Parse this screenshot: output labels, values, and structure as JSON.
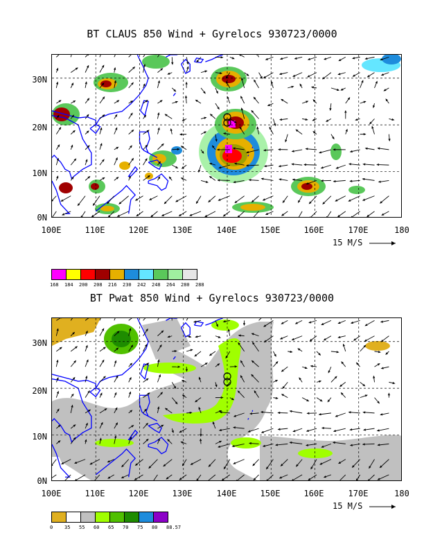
{
  "panel1": {
    "title": "BT CLAUS 850 Wind + Gyrelocs 930723/0000",
    "y_labels": [
      "30N",
      "20N",
      "10N",
      "0N"
    ],
    "x_labels": [
      "100E",
      "110E",
      "120E",
      "130E",
      "140E",
      "150E",
      "160E",
      "170E",
      "180"
    ],
    "ref_vector": "15 M/S",
    "colorbar": {
      "colors": [
        "#ff00ff",
        "#ffff00",
        "#ff0000",
        "#a00000",
        "#e6b000",
        "#1e8cdc",
        "#64e6ff",
        "#5ac85a",
        "#a0f0a0",
        "#e6e6e6"
      ],
      "labels": [
        "168",
        "184",
        "200",
        "208",
        "216",
        "230",
        "242",
        "248",
        "264",
        "280",
        "288"
      ]
    }
  },
  "panel2": {
    "title": "BT Pwat 850 Wind + Gyrelocs 930723/0000",
    "y_labels": [
      "30N",
      "20N",
      "10N",
      "0N"
    ],
    "x_labels": [
      "100E",
      "110E",
      "120E",
      "130E",
      "140E",
      "150E",
      "160E",
      "170E",
      "180"
    ],
    "ref_vector": "15 M/S",
    "colorbar": {
      "colors": [
        "#e0b020",
        "#ffffff",
        "#c0c0c0",
        "#a0ff00",
        "#50c000",
        "#1e8c00",
        "#1e8cdc",
        "#8c00c8"
      ],
      "labels": [
        "0",
        "35",
        "55",
        "60",
        "65",
        "70",
        "75",
        "80",
        "88.57"
      ]
    }
  },
  "colors": {
    "coast": "#0000ff",
    "grid": "#000000"
  }
}
